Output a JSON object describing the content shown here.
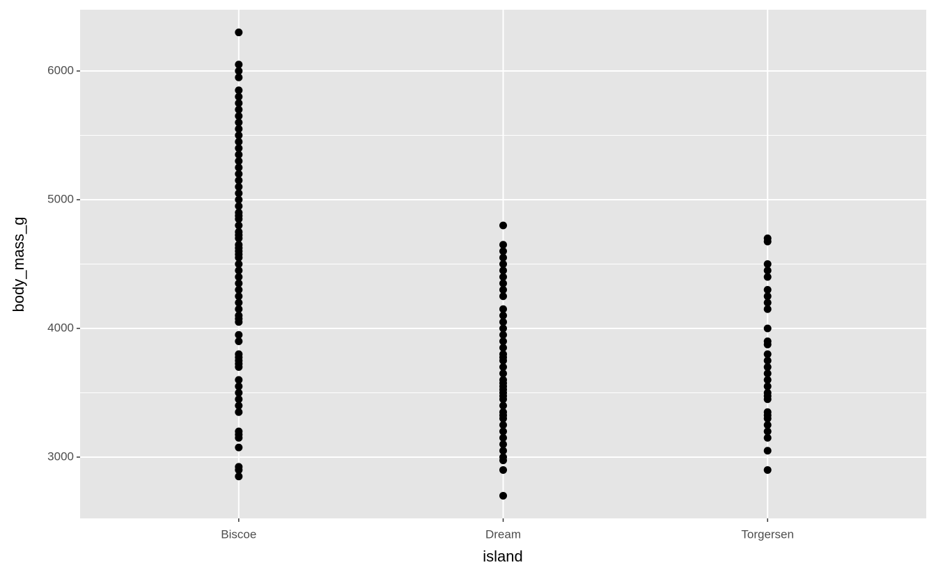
{
  "chart_data": {
    "type": "strip",
    "x_label": "island",
    "y_label": "body_mass_g",
    "categories": [
      "Biscoe",
      "Dream",
      "Torgersen"
    ],
    "values": [
      [
        6300,
        6050,
        6000,
        5950,
        5850,
        5800,
        5750,
        5700,
        5650,
        5600,
        5550,
        5500,
        5450,
        5400,
        5350,
        5300,
        5250,
        5200,
        5150,
        5100,
        5050,
        5000,
        4950,
        4900,
        4875,
        4850,
        4800,
        4750,
        4725,
        4700,
        4650,
        4625,
        4600,
        4575,
        4550,
        4500,
        4450,
        4400,
        4350,
        4300,
        4250,
        4200,
        4150,
        4100,
        4075,
        4050,
        3950,
        3900,
        3800,
        3775,
        3750,
        3725,
        3700,
        3600,
        3550,
        3500,
        3450,
        3400,
        3350,
        3200,
        3175,
        3150,
        3075,
        2925,
        2900,
        2850
      ],
      [
        4800,
        4650,
        4600,
        4550,
        4500,
        4450,
        4400,
        4350,
        4300,
        4250,
        4150,
        4100,
        4050,
        4000,
        3950,
        3900,
        3850,
        3800,
        3775,
        3750,
        3700,
        3650,
        3600,
        3575,
        3550,
        3525,
        3500,
        3475,
        3450,
        3400,
        3350,
        3325,
        3300,
        3250,
        3200,
        3150,
        3100,
        3050,
        3000,
        2975,
        2900,
        2700
      ],
      [
        4700,
        4675,
        4500,
        4450,
        4400,
        4300,
        4250,
        4200,
        4150,
        4000,
        3900,
        3875,
        3800,
        3750,
        3700,
        3650,
        3600,
        3550,
        3500,
        3475,
        3450,
        3350,
        3325,
        3300,
        3250,
        3200,
        3150,
        3050,
        2900
      ]
    ],
    "color": "#000000",
    "ylim": [
      2524,
      6476
    ],
    "yticks": [
      3000,
      4000,
      5000,
      6000
    ],
    "minor_grid": [
      3500,
      4500,
      5500
    ],
    "grid": true
  }
}
